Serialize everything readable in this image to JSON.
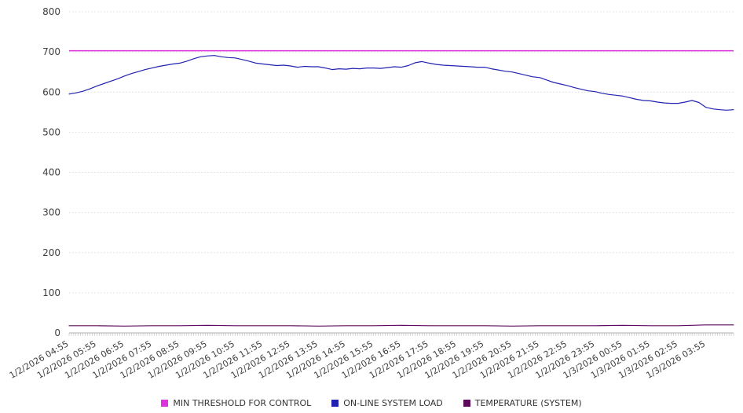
{
  "chart_data": {
    "type": "line",
    "title": "",
    "xlabel": "",
    "ylabel": "",
    "ylim": [
      0,
      800
    ],
    "yticks": [
      0,
      100,
      200,
      300,
      400,
      500,
      600,
      700,
      800
    ],
    "grid": "horizontal-dotted",
    "legend_position": "bottom",
    "x_labels": [
      "1/2/2026 04:55",
      "1/2/2026 05:55",
      "1/2/2026 06:55",
      "1/2/2026 07:55",
      "1/2/2026 08:55",
      "1/2/2026 09:55",
      "1/2/2026 10:55",
      "1/2/2026 11:55",
      "1/2/2026 12:55",
      "1/2/2026 13:55",
      "1/2/2026 14:55",
      "1/2/2026 15:55",
      "1/2/2026 16:55",
      "1/2/2026 17:55",
      "1/2/2026 18:55",
      "1/2/2026 19:55",
      "1/2/2026 20:55",
      "1/2/2026 21:55",
      "1/2/2026 22:55",
      "1/2/2026 23:55",
      "1/3/2026 00:55",
      "1/3/2026 01:55",
      "1/3/2026 02:55",
      "1/3/2026 03:55"
    ],
    "series": [
      {
        "name": "MIN THRESHOLD FOR CONTROL",
        "color": "#dd33dd",
        "style": "hline",
        "value": 703
      },
      {
        "name": "ON-LINE SYSTEM LOAD",
        "color": "#2222b2",
        "style": "line",
        "values": [
          595,
          598,
          602,
          608,
          615,
          621,
          627,
          633,
          640,
          646,
          651,
          656,
          660,
          664,
          667,
          670,
          672,
          677,
          683,
          688,
          690,
          691,
          688,
          686,
          685,
          681,
          677,
          672,
          670,
          668,
          666,
          667,
          665,
          662,
          664,
          663,
          663,
          660,
          656,
          658,
          657,
          659,
          658,
          660,
          660,
          659,
          661,
          663,
          662,
          666,
          673,
          676,
          672,
          669,
          667,
          666,
          665,
          664,
          663,
          662,
          662,
          658,
          655,
          652,
          650,
          646,
          642,
          638,
          636,
          630,
          624,
          620,
          616,
          611,
          607,
          603,
          601,
          597,
          594,
          592,
          590,
          586,
          582,
          579,
          578,
          575,
          573,
          572,
          572,
          575,
          579,
          574,
          562,
          558,
          556,
          555,
          556
        ]
      },
      {
        "name": "TEMPERATURE (SYSTEM)",
        "color": "#5c0a5c",
        "style": "line",
        "values": [
          18,
          18,
          17,
          18,
          18,
          19,
          18,
          18,
          18,
          17,
          18,
          18,
          19,
          18,
          18,
          18,
          17,
          18,
          18,
          18,
          19,
          18,
          18,
          20,
          20
        ]
      }
    ]
  }
}
